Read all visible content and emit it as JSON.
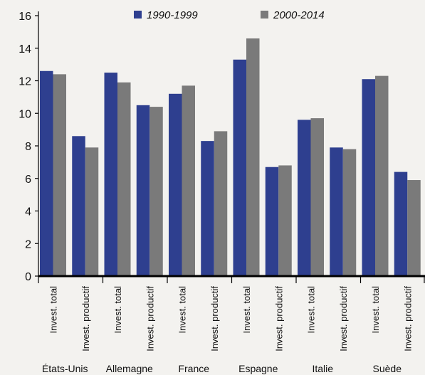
{
  "chart_data": {
    "type": "bar",
    "groups": [
      {
        "country": "États-Unis",
        "categories": [
          "Invest. total",
          "Invest. productif"
        ]
      },
      {
        "country": "Allemagne",
        "categories": [
          "Invest. total",
          "Invest. productif"
        ]
      },
      {
        "country": "France",
        "categories": [
          "Invest. total",
          "Invest. productif"
        ]
      },
      {
        "country": "Espagne",
        "categories": [
          "Invest. total",
          "Invest. productif"
        ]
      },
      {
        "country": "Italie",
        "categories": [
          "Invest. total",
          "Invest. productif"
        ]
      },
      {
        "country": "Suède",
        "categories": [
          "Invest. total",
          "Invest. productif"
        ]
      }
    ],
    "series": [
      {
        "name": "1990-1999",
        "color": "#2e3f8f",
        "values": [
          12.6,
          8.6,
          12.5,
          10.5,
          11.2,
          8.3,
          13.3,
          6.7,
          9.6,
          7.9,
          12.1,
          6.4
        ]
      },
      {
        "name": "2000-2014",
        "color": "#7a7a7a",
        "values": [
          12.4,
          7.9,
          11.9,
          10.4,
          11.7,
          8.9,
          14.6,
          6.8,
          9.7,
          7.8,
          12.3,
          5.9
        ]
      }
    ],
    "yticks": [
      0,
      2,
      4,
      6,
      8,
      10,
      12,
      14,
      16
    ],
    "ylim": [
      0,
      16
    ],
    "legend": "top",
    "grid": false
  }
}
